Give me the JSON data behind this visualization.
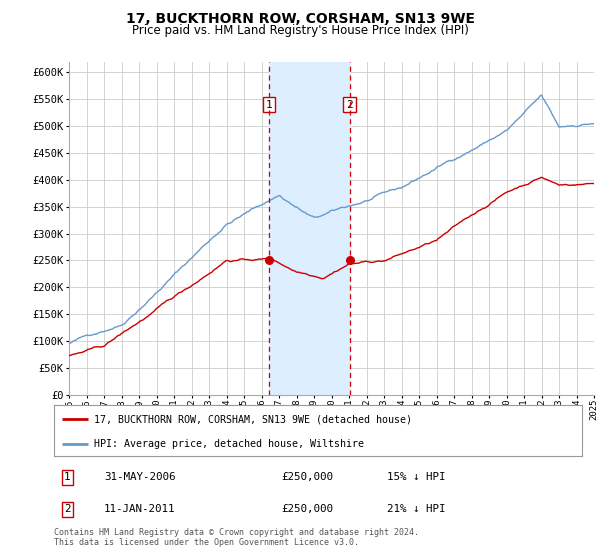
{
  "title": "17, BUCKTHORN ROW, CORSHAM, SN13 9WE",
  "subtitle": "Price paid vs. HM Land Registry's House Price Index (HPI)",
  "ylabel_ticks": [
    "£0",
    "£50K",
    "£100K",
    "£150K",
    "£200K",
    "£250K",
    "£300K",
    "£350K",
    "£400K",
    "£450K",
    "£500K",
    "£550K",
    "£600K"
  ],
  "ylim": [
    0,
    620000
  ],
  "yticks": [
    0,
    50000,
    100000,
    150000,
    200000,
    250000,
    300000,
    350000,
    400000,
    450000,
    500000,
    550000,
    600000
  ],
  "x_start_year": 1995,
  "x_end_year": 2025,
  "purchase1_date": 2006.41,
  "purchase1_price": 250000,
  "purchase1_label": "1",
  "purchase2_date": 2011.03,
  "purchase2_price": 250000,
  "purchase2_label": "2",
  "legend_entry1": "17, BUCKTHORN ROW, CORSHAM, SN13 9WE (detached house)",
  "legend_entry2": "HPI: Average price, detached house, Wiltshire",
  "table_row1": [
    "1",
    "31-MAY-2006",
    "£250,000",
    "15% ↓ HPI"
  ],
  "table_row2": [
    "2",
    "11-JAN-2011",
    "£250,000",
    "21% ↓ HPI"
  ],
  "footer": "Contains HM Land Registry data © Crown copyright and database right 2024.\nThis data is licensed under the Open Government Licence v3.0.",
  "hpi_color": "#6699cc",
  "price_color": "#cc0000",
  "vline_color": "#cc0000",
  "shade_color": "#ddeeff",
  "grid_color": "#cccccc",
  "background_color": "#ffffff"
}
